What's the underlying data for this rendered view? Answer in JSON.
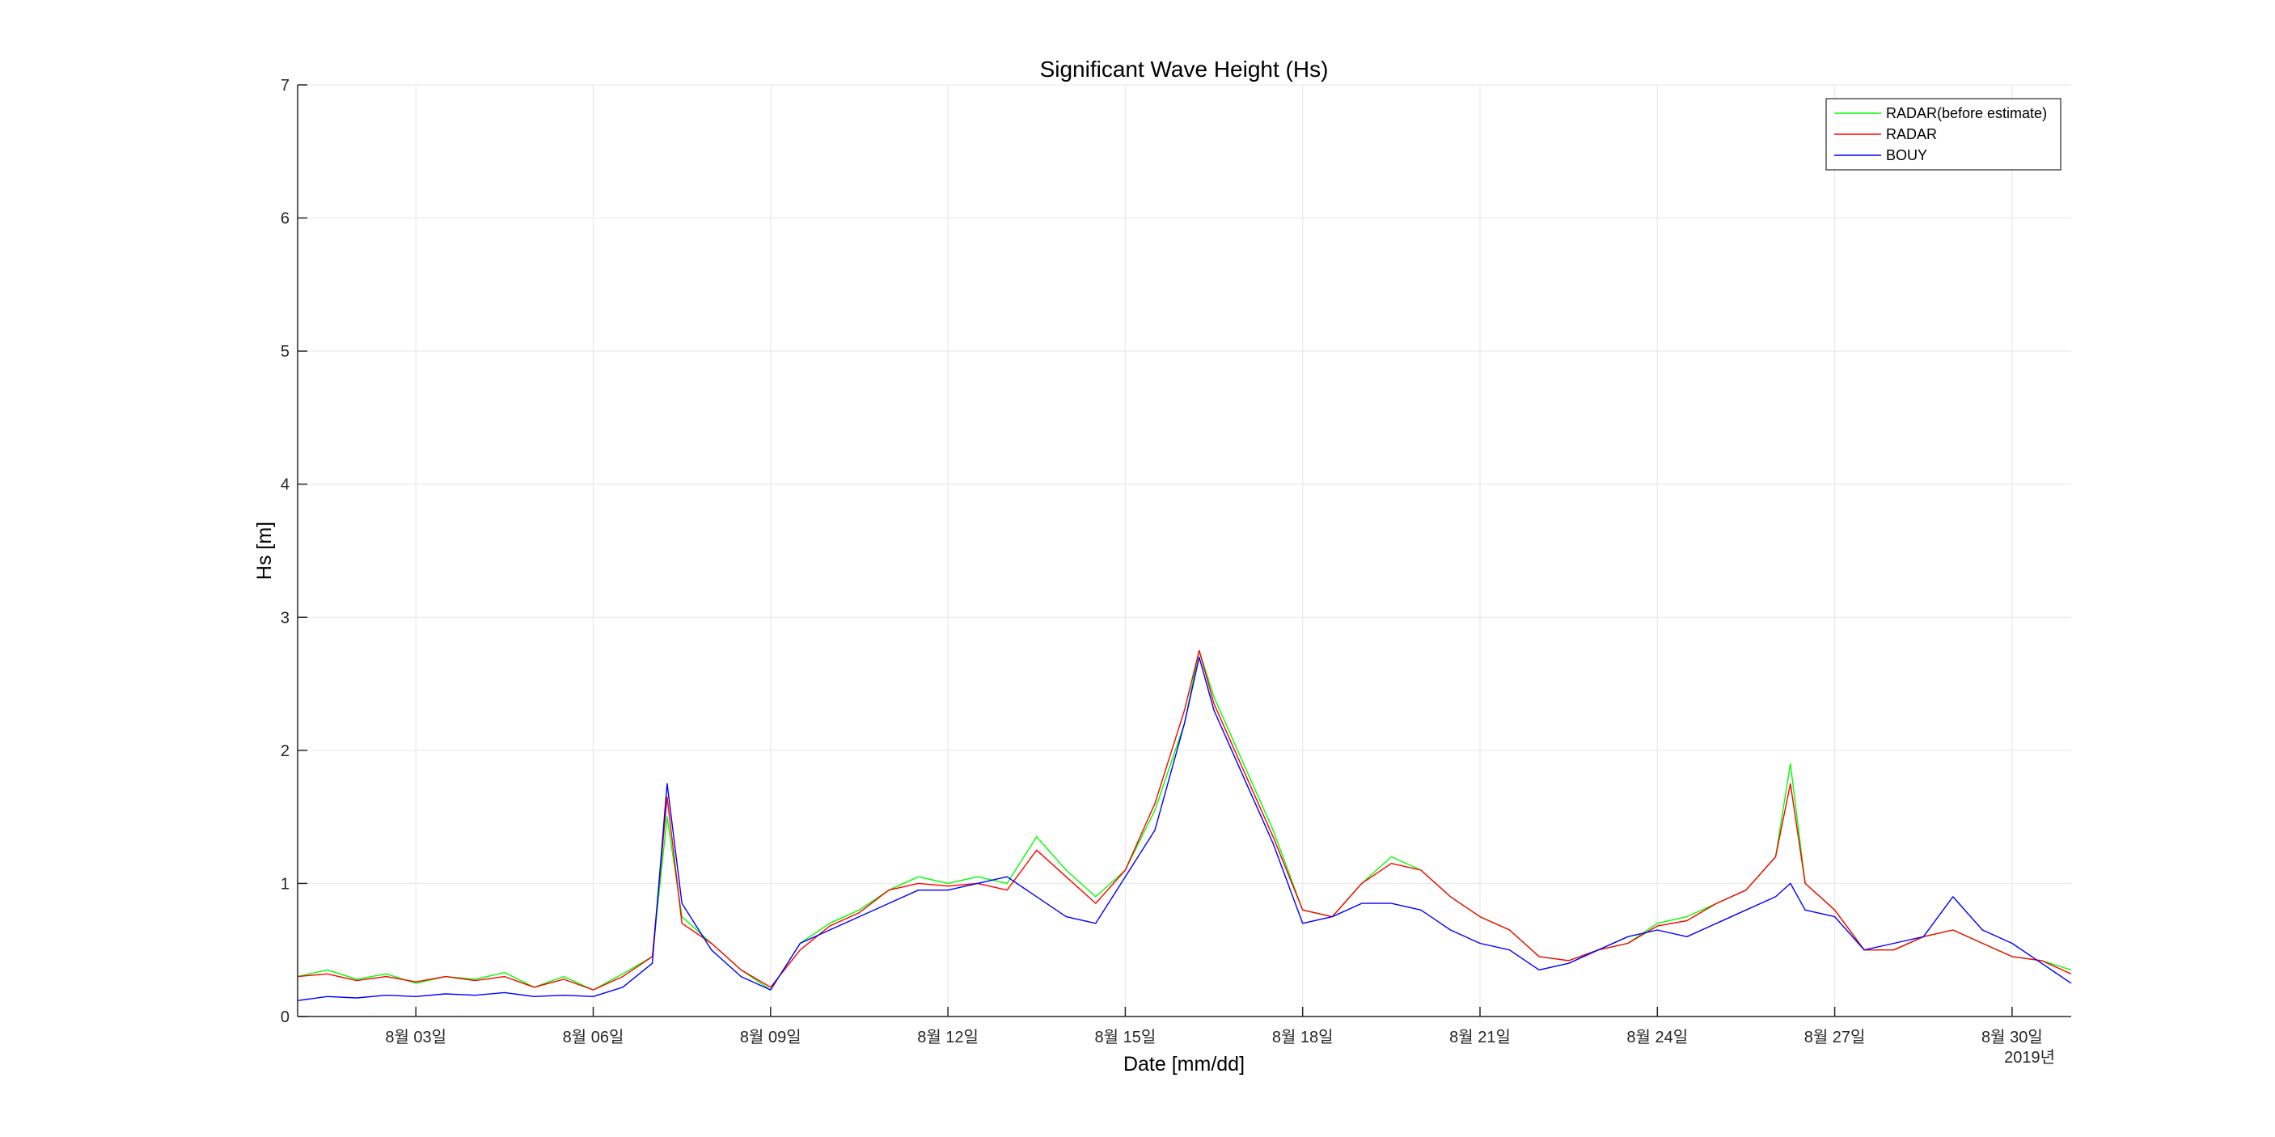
{
  "chart_data": {
    "type": "line",
    "title": "Significant Wave Height (Hs)",
    "xlabel": "Date [mm/dd]",
    "ylabel": "Hs [m]",
    "year_label": "2019년",
    "grid": true,
    "legend_position": "top-right",
    "x_range": [
      "2019-08-01",
      "2019-08-31"
    ],
    "ylim": [
      0,
      7
    ],
    "y_ticks": [
      0,
      1,
      2,
      3,
      4,
      5,
      6,
      7
    ],
    "x_ticks": [
      {
        "date": "2019-08-03",
        "label": "8월 03일"
      },
      {
        "date": "2019-08-06",
        "label": "8월 06일"
      },
      {
        "date": "2019-08-09",
        "label": "8월 09일"
      },
      {
        "date": "2019-08-12",
        "label": "8월 12일"
      },
      {
        "date": "2019-08-15",
        "label": "8월 15일"
      },
      {
        "date": "2019-08-18",
        "label": "8월 18일"
      },
      {
        "date": "2019-08-21",
        "label": "8월 21일"
      },
      {
        "date": "2019-08-24",
        "label": "8월 24일"
      },
      {
        "date": "2019-08-27",
        "label": "8월 27일"
      },
      {
        "date": "2019-08-30",
        "label": "8월 30일"
      }
    ],
    "x": [
      "08-01 00:00",
      "08-01 12:00",
      "08-02 00:00",
      "08-02 12:00",
      "08-03 00:00",
      "08-03 12:00",
      "08-04 00:00",
      "08-04 12:00",
      "08-05 00:00",
      "08-05 12:00",
      "08-06 00:00",
      "08-06 12:00",
      "08-07 00:00",
      "08-07 06:00",
      "08-07 12:00",
      "08-08 00:00",
      "08-08 12:00",
      "08-09 00:00",
      "08-09 12:00",
      "08-10 00:00",
      "08-10 12:00",
      "08-11 00:00",
      "08-11 12:00",
      "08-12 00:00",
      "08-12 12:00",
      "08-13 00:00",
      "08-13 12:00",
      "08-14 00:00",
      "08-14 12:00",
      "08-15 00:00",
      "08-15 12:00",
      "08-16 00:00",
      "08-16 06:00",
      "08-16 12:00",
      "08-17 00:00",
      "08-17 12:00",
      "08-18 00:00",
      "08-18 12:00",
      "08-19 00:00",
      "08-19 12:00",
      "08-20 00:00",
      "08-20 12:00",
      "08-21 00:00",
      "08-21 12:00",
      "08-22 00:00",
      "08-22 12:00",
      "08-23 00:00",
      "08-23 12:00",
      "08-24 00:00",
      "08-24 12:00",
      "08-25 00:00",
      "08-25 12:00",
      "08-26 00:00",
      "08-26 06:00",
      "08-26 12:00",
      "08-27 00:00",
      "08-27 12:00",
      "08-28 00:00",
      "08-28 12:00",
      "08-29 00:00",
      "08-29 12:00",
      "08-30 00:00",
      "08-30 12:00",
      "08-31 00:00"
    ],
    "series": [
      {
        "name": "RADAR(before estimate)",
        "color": "#00ff00",
        "values": [
          0.3,
          0.35,
          0.28,
          0.32,
          0.25,
          0.3,
          0.28,
          0.33,
          0.22,
          0.3,
          0.2,
          0.32,
          0.45,
          1.5,
          0.75,
          0.55,
          0.35,
          0.2,
          0.55,
          0.7,
          0.8,
          0.95,
          1.05,
          1.0,
          1.05,
          1.0,
          1.35,
          1.1,
          0.9,
          1.1,
          1.55,
          2.2,
          2.75,
          2.4,
          1.9,
          1.4,
          0.8,
          0.75,
          1.0,
          1.2,
          1.1,
          0.9,
          0.75,
          0.65,
          0.45,
          0.42,
          0.5,
          0.55,
          0.7,
          0.75,
          0.85,
          0.95,
          1.2,
          1.9,
          1.0,
          0.8,
          0.5,
          0.5,
          0.6,
          0.65,
          0.55,
          0.45,
          0.42,
          0.35
        ]
      },
      {
        "name": "RADAR",
        "color": "#ff0000",
        "values": [
          0.3,
          0.32,
          0.27,
          0.3,
          0.26,
          0.3,
          0.27,
          0.3,
          0.22,
          0.28,
          0.2,
          0.3,
          0.45,
          1.65,
          0.7,
          0.55,
          0.35,
          0.22,
          0.5,
          0.68,
          0.78,
          0.95,
          1.0,
          0.98,
          1.0,
          0.95,
          1.25,
          1.05,
          0.85,
          1.1,
          1.6,
          2.3,
          2.75,
          2.35,
          1.85,
          1.35,
          0.8,
          0.75,
          1.0,
          1.15,
          1.1,
          0.9,
          0.75,
          0.65,
          0.45,
          0.42,
          0.5,
          0.55,
          0.68,
          0.72,
          0.85,
          0.95,
          1.2,
          1.75,
          1.0,
          0.8,
          0.5,
          0.5,
          0.6,
          0.65,
          0.55,
          0.45,
          0.42,
          0.32
        ]
      },
      {
        "name": "BOUY",
        "color": "#0000ff",
        "values": [
          0.12,
          0.15,
          0.14,
          0.16,
          0.15,
          0.17,
          0.16,
          0.18,
          0.15,
          0.16,
          0.15,
          0.22,
          0.4,
          1.75,
          0.85,
          0.5,
          0.3,
          0.2,
          0.55,
          0.65,
          0.75,
          0.85,
          0.95,
          0.95,
          1.0,
          1.05,
          0.9,
          0.75,
          0.7,
          1.05,
          1.4,
          2.2,
          2.7,
          2.3,
          1.8,
          1.3,
          0.7,
          0.75,
          0.85,
          0.85,
          0.8,
          0.65,
          0.55,
          0.5,
          0.35,
          0.4,
          0.5,
          0.6,
          0.65,
          0.6,
          0.7,
          0.8,
          0.9,
          1.0,
          0.8,
          0.75,
          0.5,
          0.55,
          0.6,
          0.9,
          0.65,
          0.55,
          0.4,
          0.25
        ]
      }
    ]
  }
}
